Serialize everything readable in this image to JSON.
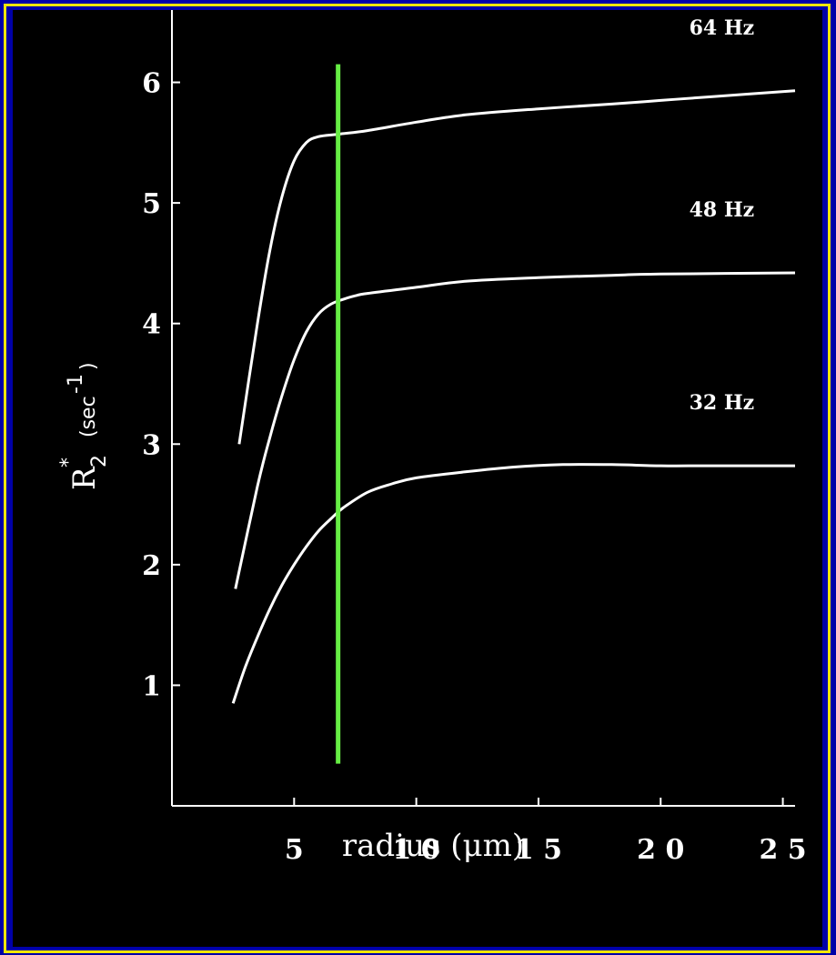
{
  "chart_data": {
    "type": "line",
    "title": "",
    "xlabel": "radius (μm)",
    "ylabel": {
      "symbol": "R",
      "superscript": "*",
      "subscript": "2",
      "unit": "(sec",
      "unit_exponent": "-1",
      "unit_close": ")"
    },
    "xlim": [
      0,
      25.5
    ],
    "ylim": [
      0,
      6.6
    ],
    "x_ticks": [
      5,
      10,
      15,
      20,
      25
    ],
    "x_tick_labels": [
      "5",
      "1 0",
      "1 5",
      "2 0",
      "2 5"
    ],
    "y_ticks": [
      1,
      2,
      3,
      4,
      5,
      6
    ],
    "y_tick_labels": [
      "1",
      "2",
      "3",
      "4",
      "5",
      "6"
    ],
    "series": [
      {
        "name": "64  Hz",
        "x": [
          2.75,
          3.5,
          4.0,
          4.5,
          5.0,
          5.5,
          6.0,
          6.8,
          8,
          10,
          12,
          15,
          18,
          20,
          22,
          25.5
        ],
        "y": [
          3.0,
          4.0,
          4.6,
          5.05,
          5.35,
          5.5,
          5.55,
          5.57,
          5.6,
          5.67,
          5.73,
          5.78,
          5.82,
          5.85,
          5.88,
          5.93
        ]
      },
      {
        "name": "48  Hz",
        "x": [
          2.6,
          3.5,
          4.0,
          4.5,
          5.0,
          5.5,
          6.0,
          6.5,
          7.0,
          7.5,
          8,
          10,
          12,
          15,
          18,
          20,
          25.5
        ],
        "y": [
          1.8,
          2.65,
          3.05,
          3.4,
          3.7,
          3.93,
          4.08,
          4.16,
          4.2,
          4.23,
          4.25,
          4.3,
          4.35,
          4.38,
          4.4,
          4.41,
          4.42
        ]
      },
      {
        "name": "32  Hz",
        "x": [
          2.5,
          3.0,
          3.5,
          4.0,
          4.5,
          5.0,
          5.5,
          6.0,
          6.5,
          7.0,
          8,
          9,
          10,
          12,
          14,
          16,
          18,
          20,
          22,
          25.5
        ],
        "y": [
          0.85,
          1.15,
          1.4,
          1.63,
          1.83,
          2.0,
          2.15,
          2.28,
          2.38,
          2.47,
          2.6,
          2.67,
          2.72,
          2.77,
          2.81,
          2.83,
          2.83,
          2.82,
          2.82,
          2.82
        ]
      }
    ],
    "marker_line": {
      "x": 6.8,
      "y_range": [
        0.35,
        6.15
      ],
      "color": "#66ee44"
    },
    "line_color": "#ffffff",
    "background": "#000000",
    "border_color": "#f2e600",
    "outer_background": "#0000a8",
    "grid": false,
    "legend": "none"
  }
}
